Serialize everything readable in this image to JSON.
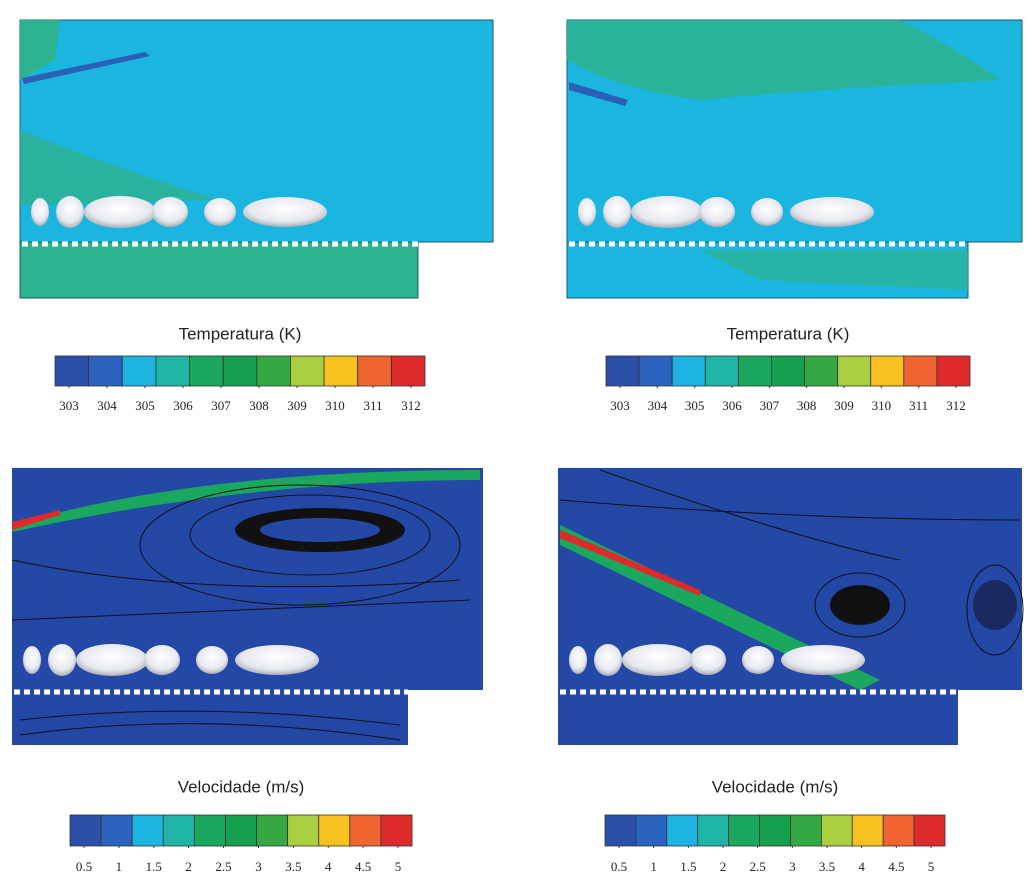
{
  "panels": [
    {
      "colorbar": {
        "title": "Temperatura (K)",
        "ticks": [
          303,
          304,
          305,
          306,
          307,
          308,
          309,
          310,
          311,
          312
        ],
        "colors": [
          "#2a4fa8",
          "#2c63bf",
          "#1eb4e2",
          "#1fb5a6",
          "#1aa75e",
          "#17a04e",
          "#36a843",
          "#a9cf3f",
          "#f7c21f",
          "#ef6430",
          "#de2a2a"
        ]
      }
    },
    {
      "colorbar": {
        "title": "Temperatura (K)",
        "ticks": [
          303,
          304,
          305,
          306,
          307,
          308,
          309,
          310,
          311,
          312
        ],
        "colors": [
          "#2a4fa8",
          "#2c63bf",
          "#1eb4e2",
          "#1fb5a6",
          "#1aa75e",
          "#17a04e",
          "#36a843",
          "#a9cf3f",
          "#f7c21f",
          "#ef6430",
          "#de2a2a"
        ]
      }
    },
    {
      "colorbar": {
        "title": "Velocidade (m/s)",
        "ticks": [
          0.5,
          1,
          1.5,
          2,
          2.5,
          3,
          3.5,
          4,
          4.5,
          5
        ],
        "colors": [
          "#2a4fa8",
          "#2c63bf",
          "#1eb4e2",
          "#1fb5a6",
          "#1aa75e",
          "#17a04e",
          "#36a843",
          "#a9cf3f",
          "#f7c21f",
          "#ef6430",
          "#de2a2a"
        ]
      }
    },
    {
      "colorbar": {
        "title": "Velocidade (m/s)",
        "ticks": [
          0.5,
          1,
          1.5,
          2,
          2.5,
          3,
          3.5,
          4,
          4.5,
          5
        ],
        "colors": [
          "#2a4fa8",
          "#2c63bf",
          "#1eb4e2",
          "#1fb5a6",
          "#1aa75e",
          "#17a04e",
          "#36a843",
          "#a9cf3f",
          "#f7c21f",
          "#ef6430",
          "#de2a2a"
        ]
      }
    }
  ]
}
